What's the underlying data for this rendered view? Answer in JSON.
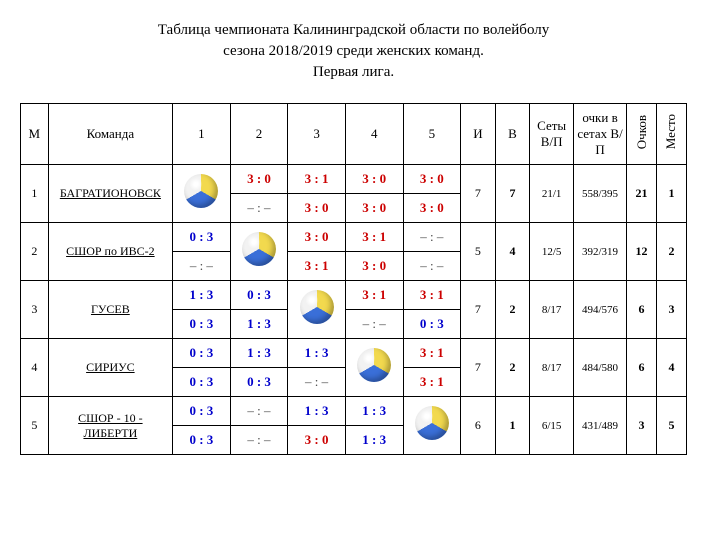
{
  "title_lines": [
    "Таблица чемпионата Калининградской области по волейболу",
    "сезона 2018/2019 среди женских команд.",
    "Первая лига."
  ],
  "headers": {
    "m": "М",
    "team": "Команда",
    "c1": "1",
    "c2": "2",
    "c3": "3",
    "c4": "4",
    "c5": "5",
    "played": "И",
    "wins": "В",
    "sets": "Сеты В/П",
    "points_in_sets": "очки в сетах В/П",
    "points": "Очков",
    "place": "Место"
  },
  "colors": {
    "win": "#cc0000",
    "loss": "#0000cc",
    "dash": "#444444",
    "text": "#000000",
    "background": "#ffffff",
    "border": "#000000"
  },
  "rows": [
    {
      "n": "1",
      "team": "БАГРАТИОНОВСК",
      "self": 0,
      "scores": [
        [
          null,
          null
        ],
        [
          {
            "t": "3 : 0",
            "c": "win"
          },
          {
            "t": "– : –",
            "c": "dash"
          }
        ],
        [
          {
            "t": "3 : 1",
            "c": "win"
          },
          {
            "t": "3 : 0",
            "c": "win"
          }
        ],
        [
          {
            "t": "3 : 0",
            "c": "win"
          },
          {
            "t": "3 : 0",
            "c": "win"
          }
        ],
        [
          {
            "t": "3 : 0",
            "c": "win"
          },
          {
            "t": "3 : 0",
            "c": "win"
          }
        ]
      ],
      "played": "7",
      "wins": "7",
      "sets": "21/1",
      "pis": "558/395",
      "points": "21",
      "place": "1"
    },
    {
      "n": "2",
      "team": "СШОР по ИВС-2",
      "self": 1,
      "scores": [
        [
          {
            "t": "0 : 3",
            "c": "loss"
          },
          {
            "t": "– : –",
            "c": "dash"
          }
        ],
        [
          null,
          null
        ],
        [
          {
            "t": "3 : 0",
            "c": "win"
          },
          {
            "t": "3 : 1",
            "c": "win"
          }
        ],
        [
          {
            "t": "3 : 1",
            "c": "win"
          },
          {
            "t": "3 : 0",
            "c": "win"
          }
        ],
        [
          {
            "t": "– : –",
            "c": "dash"
          },
          {
            "t": "– : –",
            "c": "dash"
          }
        ]
      ],
      "played": "5",
      "wins": "4",
      "sets": "12/5",
      "pis": "392/319",
      "points": "12",
      "place": "2"
    },
    {
      "n": "3",
      "team": "ГУСЕВ",
      "self": 2,
      "scores": [
        [
          {
            "t": "1 : 3",
            "c": "loss"
          },
          {
            "t": "0 : 3",
            "c": "loss"
          }
        ],
        [
          {
            "t": "0 : 3",
            "c": "loss"
          },
          {
            "t": "1 : 3",
            "c": "loss"
          }
        ],
        [
          null,
          null
        ],
        [
          {
            "t": "3 : 1",
            "c": "win"
          },
          {
            "t": "– : –",
            "c": "dash"
          }
        ],
        [
          {
            "t": "3 : 1",
            "c": "win"
          },
          {
            "t": "0 : 3",
            "c": "loss"
          }
        ]
      ],
      "played": "7",
      "wins": "2",
      "sets": "8/17",
      "pis": "494/576",
      "points": "6",
      "place": "3"
    },
    {
      "n": "4",
      "team": "СИРИУС",
      "self": 3,
      "scores": [
        [
          {
            "t": "0 : 3",
            "c": "loss"
          },
          {
            "t": "0 : 3",
            "c": "loss"
          }
        ],
        [
          {
            "t": "1 : 3",
            "c": "loss"
          },
          {
            "t": "0 : 3",
            "c": "loss"
          }
        ],
        [
          {
            "t": "1 : 3",
            "c": "loss"
          },
          {
            "t": "– : –",
            "c": "dash"
          }
        ],
        [
          null,
          null
        ],
        [
          {
            "t": "3 : 1",
            "c": "win"
          },
          {
            "t": "3 : 1",
            "c": "win"
          }
        ]
      ],
      "played": "7",
      "wins": "2",
      "sets": "8/17",
      "pis": "484/580",
      "points": "6",
      "place": "4"
    },
    {
      "n": "5",
      "team": "СШОР - 10 - ЛИБЕРТИ",
      "self": 4,
      "scores": [
        [
          {
            "t": "0 : 3",
            "c": "loss"
          },
          {
            "t": "0 : 3",
            "c": "loss"
          }
        ],
        [
          {
            "t": "– : –",
            "c": "dash"
          },
          {
            "t": "– : –",
            "c": "dash"
          }
        ],
        [
          {
            "t": "1 : 3",
            "c": "loss"
          },
          {
            "t": "3 : 0",
            "c": "win"
          }
        ],
        [
          {
            "t": "1 : 3",
            "c": "loss"
          },
          {
            "t": "1 : 3",
            "c": "loss"
          }
        ],
        [
          null,
          null
        ]
      ],
      "played": "6",
      "wins": "1",
      "sets": "6/15",
      "pis": "431/489",
      "points": "3",
      "place": "5"
    }
  ]
}
